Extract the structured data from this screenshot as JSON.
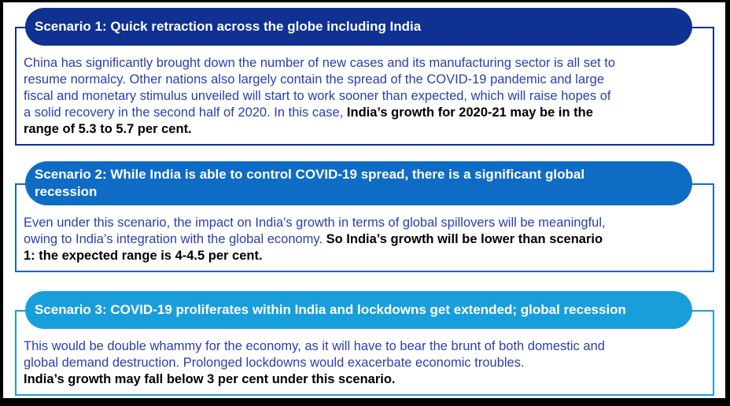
{
  "page": {
    "background": "#ffffff",
    "outer_border_color": "#000000"
  },
  "text_colors": {
    "body_blue": "#2b3eae",
    "body_bold": "#000000"
  },
  "scenarios": [
    {
      "title": "Scenario 1: Quick retraction across the globe including India",
      "colors": {
        "header": "#0e3192",
        "frame": "#0e3192",
        "title_text": "#ffffff"
      },
      "body": [
        {
          "bold": false,
          "text": "China has significantly brought down the number of new cases and its manufacturing sector is all set to\nresume normalcy. Other nations also largely contain the spread of the COVID-19 pandemic and large\nfiscal and monetary stimulus unveiled will start to work sooner than expected, which will raise hopes of\na solid recovery in the second half of 2020. In this case, "
        },
        {
          "bold": true,
          "text": "India’s growth for 2020-21 may be in the\nrange of 5.3 to 5.7 per cent."
        }
      ]
    },
    {
      "title": "Scenario 2: While India is able to control COVID-19 spread, there is a significant global\nrecession",
      "colors": {
        "header": "#0f6cc5",
        "frame": "#0f6cc5",
        "title_text": "#ffffff"
      },
      "body": [
        {
          "bold": false,
          "text": "Even under this scenario, the impact on India's growth in terms of global spillovers will be meaningful,\nowing to India’s integration with the global economy. "
        },
        {
          "bold": true,
          "text": "So India’s growth will be lower than scenario\n1: the expected range is 4-4.5 per cent."
        }
      ]
    },
    {
      "title": "Scenario 3: COVID-19 proliferates within India and lockdowns get extended; global recession",
      "colors": {
        "header": "#189fdb",
        "frame": "#189fdb",
        "title_text": "#ffffff"
      },
      "body": [
        {
          "bold": false,
          "text": "This would be double whammy for the economy, as it will have to bear the brunt of both domestic and\nglobal demand destruction. Prolonged lockdowns would exacerbate economic troubles.\n"
        },
        {
          "bold": true,
          "text": "India’s growth may fall below 3 per cent under this scenario."
        }
      ]
    }
  ]
}
